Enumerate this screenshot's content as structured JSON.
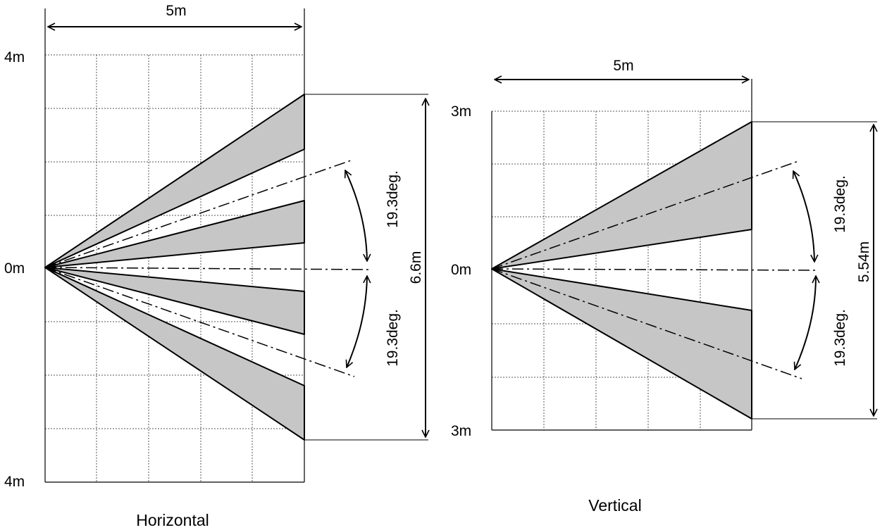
{
  "horizontal": {
    "caption": "Horizontal",
    "top_label": "4m",
    "center_label": "0m",
    "bottom_label": "4m",
    "width_label": "5m",
    "span_label": "6.6m",
    "upper_angle_label": "19.3deg.",
    "lower_angle_label": "19.3deg."
  },
  "vertical": {
    "caption": "Vertical",
    "top_label": "3m",
    "center_label": "0m",
    "bottom_label": "3m",
    "width_label": "5m",
    "span_label": "5.54m",
    "upper_angle_label": "19.3deg.",
    "lower_angle_label": "19.3deg."
  }
}
